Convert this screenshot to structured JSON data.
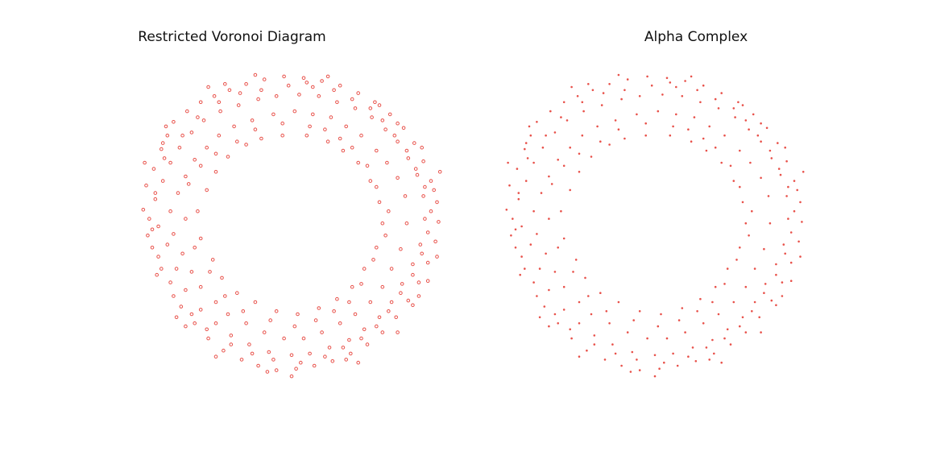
{
  "colors": {
    "point": "#e8514a",
    "background": "#ffffff",
    "title": "#111111"
  },
  "chart_data": [
    {
      "type": "scatter",
      "title": "Restricted Voronoi Diagram",
      "marker": "hollow-circle",
      "axes_visible": false,
      "grid": false,
      "xlim": [
        -1.05,
        1.05
      ],
      "ylim": [
        -1.05,
        1.05
      ],
      "description_of_points": "Sample points of an annulus (outer radius ~1.0, inner radius ~0.55) shown as small open circles; the inner hole is a star-like shape",
      "points": [
        [
          -0.98,
          0.11
        ],
        [
          -0.95,
          -0.06
        ],
        [
          -0.96,
          0.27
        ],
        [
          -0.91,
          0.38
        ],
        [
          -0.88,
          -0.2
        ],
        [
          -0.86,
          0.51
        ],
        [
          -0.82,
          0.6
        ],
        [
          -0.8,
          -0.37
        ],
        [
          -0.78,
          0.69
        ],
        [
          -0.73,
          -0.53
        ],
        [
          -0.69,
          0.76
        ],
        [
          -0.64,
          -0.64
        ],
        [
          -0.6,
          0.82
        ],
        [
          -0.55,
          -0.74
        ],
        [
          -0.51,
          0.86
        ],
        [
          -0.45,
          -0.82
        ],
        [
          -0.41,
          0.9
        ],
        [
          -0.33,
          -0.88
        ],
        [
          -0.3,
          0.94
        ],
        [
          -0.22,
          -0.92
        ],
        [
          -0.18,
          0.97
        ],
        [
          -0.1,
          -0.95
        ],
        [
          -0.05,
          0.99
        ],
        [
          0.03,
          -0.94
        ],
        [
          0.08,
          0.98
        ],
        [
          0.15,
          -0.92
        ],
        [
          0.2,
          0.96
        ],
        [
          0.27,
          -0.89
        ],
        [
          0.32,
          0.93
        ],
        [
          0.39,
          -0.84
        ],
        [
          0.44,
          0.88
        ],
        [
          0.5,
          -0.78
        ],
        [
          0.55,
          0.82
        ],
        [
          0.6,
          -0.7
        ],
        [
          0.65,
          0.74
        ],
        [
          0.69,
          -0.6
        ],
        [
          0.74,
          0.65
        ],
        [
          0.77,
          -0.49
        ],
        [
          0.81,
          0.55
        ],
        [
          0.84,
          -0.37
        ],
        [
          0.87,
          0.43
        ],
        [
          0.9,
          -0.24
        ],
        [
          0.92,
          0.3
        ],
        [
          0.95,
          -0.1
        ],
        [
          0.96,
          0.16
        ],
        [
          0.97,
          0.03
        ],
        [
          -0.9,
          0.18
        ],
        [
          -0.88,
          0.0
        ],
        [
          -0.85,
          0.3
        ],
        [
          -0.8,
          0.42
        ],
        [
          -0.82,
          -0.12
        ],
        [
          -0.76,
          -0.28
        ],
        [
          -0.74,
          0.52
        ],
        [
          -0.7,
          -0.42
        ],
        [
          -0.66,
          0.62
        ],
        [
          -0.6,
          -0.55
        ],
        [
          -0.58,
          0.7
        ],
        [
          -0.5,
          -0.64
        ],
        [
          -0.47,
          0.76
        ],
        [
          -0.4,
          -0.72
        ],
        [
          -0.35,
          0.8
        ],
        [
          -0.28,
          -0.78
        ],
        [
          -0.22,
          0.84
        ],
        [
          -0.15,
          -0.83
        ],
        [
          -0.1,
          0.86
        ],
        [
          0.0,
          -0.85
        ],
        [
          0.05,
          0.87
        ],
        [
          0.12,
          -0.84
        ],
        [
          0.18,
          0.86
        ],
        [
          0.25,
          -0.8
        ],
        [
          0.3,
          0.82
        ],
        [
          0.38,
          -0.75
        ],
        [
          0.42,
          0.78
        ],
        [
          0.48,
          -0.68
        ],
        [
          0.53,
          0.72
        ],
        [
          0.58,
          -0.6
        ],
        [
          0.62,
          0.64
        ],
        [
          0.66,
          -0.5
        ],
        [
          0.7,
          0.56
        ],
        [
          0.73,
          -0.38
        ],
        [
          0.77,
          0.45
        ],
        [
          0.8,
          -0.25
        ],
        [
          0.83,
          0.34
        ],
        [
          0.85,
          -0.12
        ],
        [
          0.87,
          0.2
        ],
        [
          0.88,
          0.05
        ],
        [
          -0.8,
          0.1
        ],
        [
          -0.78,
          -0.05
        ],
        [
          -0.75,
          0.22
        ],
        [
          -0.7,
          0.33
        ],
        [
          -0.72,
          -0.18
        ],
        [
          -0.66,
          -0.3
        ],
        [
          -0.64,
          0.44
        ],
        [
          -0.6,
          -0.4
        ],
        [
          -0.56,
          0.52
        ],
        [
          -0.5,
          -0.5
        ],
        [
          -0.48,
          0.6
        ],
        [
          -0.42,
          -0.58
        ],
        [
          -0.38,
          0.66
        ],
        [
          -0.3,
          -0.64
        ],
        [
          -0.26,
          0.7
        ],
        [
          -0.18,
          -0.7
        ],
        [
          -0.12,
          0.74
        ],
        [
          -0.05,
          -0.74
        ],
        [
          0.02,
          0.76
        ],
        [
          0.08,
          -0.74
        ],
        [
          0.14,
          0.74
        ],
        [
          0.2,
          -0.7
        ],
        [
          0.26,
          0.72
        ],
        [
          0.32,
          -0.64
        ],
        [
          0.36,
          0.66
        ],
        [
          0.42,
          -0.58
        ],
        [
          0.46,
          0.6
        ],
        [
          0.52,
          -0.5
        ],
        [
          0.56,
          0.5
        ],
        [
          0.6,
          -0.4
        ],
        [
          0.63,
          0.42
        ],
        [
          0.66,
          -0.28
        ],
        [
          0.7,
          0.32
        ],
        [
          0.72,
          -0.15
        ],
        [
          0.75,
          0.2
        ],
        [
          0.76,
          0.02
        ],
        [
          -0.92,
          -0.02
        ],
        [
          -0.9,
          0.22
        ],
        [
          -0.86,
          -0.28
        ],
        [
          -0.84,
          0.45
        ],
        [
          -0.78,
          -0.46
        ],
        [
          -0.72,
          0.6
        ],
        [
          -0.66,
          -0.58
        ],
        [
          -0.62,
          0.72
        ],
        [
          -0.56,
          -0.68
        ],
        [
          -0.48,
          0.82
        ],
        [
          -0.4,
          -0.78
        ],
        [
          -0.34,
          0.88
        ],
        [
          -0.26,
          -0.84
        ],
        [
          -0.2,
          0.9
        ],
        [
          -0.12,
          -0.88
        ],
        [
          -0.02,
          0.93
        ],
        [
          0.06,
          -0.9
        ],
        [
          0.14,
          0.92
        ],
        [
          0.22,
          -0.86
        ],
        [
          0.28,
          0.9
        ],
        [
          0.34,
          -0.8
        ],
        [
          0.4,
          0.84
        ],
        [
          0.46,
          -0.74
        ],
        [
          0.52,
          0.78
        ],
        [
          0.56,
          -0.66
        ],
        [
          0.6,
          0.7
        ],
        [
          0.64,
          -0.56
        ],
        [
          0.68,
          0.6
        ],
        [
          0.72,
          -0.44
        ],
        [
          0.76,
          0.5
        ],
        [
          0.8,
          -0.32
        ],
        [
          0.82,
          0.38
        ],
        [
          0.86,
          -0.18
        ],
        [
          0.88,
          0.26
        ],
        [
          0.9,
          -0.04
        ],
        [
          0.92,
          0.1
        ],
        [
          -0.62,
          0.1
        ],
        [
          -0.6,
          -0.08
        ],
        [
          -0.56,
          0.24
        ],
        [
          -0.5,
          0.36
        ],
        [
          -0.52,
          -0.22
        ],
        [
          -0.46,
          -0.34
        ],
        [
          -0.42,
          0.46
        ],
        [
          -0.36,
          -0.44
        ],
        [
          -0.3,
          0.54
        ],
        [
          -0.24,
          -0.5
        ],
        [
          -0.2,
          0.58
        ],
        [
          -0.1,
          -0.56
        ],
        [
          -0.06,
          0.6
        ],
        [
          0.04,
          -0.58
        ],
        [
          0.1,
          0.6
        ],
        [
          0.18,
          -0.54
        ],
        [
          0.24,
          0.56
        ],
        [
          0.3,
          -0.48
        ],
        [
          0.34,
          0.5
        ],
        [
          0.4,
          -0.4
        ],
        [
          0.44,
          0.42
        ],
        [
          0.48,
          -0.28
        ],
        [
          0.52,
          0.3
        ],
        [
          0.56,
          -0.14
        ],
        [
          0.58,
          0.16
        ],
        [
          0.6,
          0.02
        ],
        [
          -0.85,
          0.55
        ],
        [
          -0.94,
          0.05
        ],
        [
          -0.89,
          -0.32
        ],
        [
          -0.7,
          -0.66
        ],
        [
          -0.44,
          0.94
        ],
        [
          -0.16,
          -0.96
        ],
        [
          0.1,
          0.95
        ],
        [
          0.36,
          -0.88
        ],
        [
          0.58,
          0.8
        ],
        [
          0.8,
          -0.52
        ],
        [
          0.94,
          0.24
        ],
        [
          0.9,
          -0.36
        ],
        [
          -0.68,
          0.28
        ],
        [
          -0.7,
          0.05
        ],
        [
          -0.64,
          -0.14
        ],
        [
          -0.6,
          0.4
        ],
        [
          -0.54,
          -0.3
        ],
        [
          -0.5,
          0.48
        ],
        [
          -0.44,
          -0.46
        ],
        [
          -0.36,
          0.56
        ],
        [
          -0.32,
          -0.56
        ],
        [
          -0.24,
          0.64
        ],
        [
          -0.14,
          -0.62
        ],
        [
          -0.06,
          0.68
        ],
        [
          0.02,
          -0.66
        ],
        [
          0.12,
          0.66
        ],
        [
          0.16,
          -0.62
        ],
        [
          0.22,
          0.64
        ],
        [
          0.28,
          -0.56
        ],
        [
          0.32,
          0.58
        ],
        [
          0.38,
          -0.5
        ],
        [
          0.4,
          0.52
        ],
        [
          0.46,
          -0.38
        ],
        [
          0.5,
          0.4
        ],
        [
          0.54,
          -0.22
        ],
        [
          0.56,
          0.26
        ],
        [
          0.62,
          -0.06
        ],
        [
          0.64,
          0.1
        ],
        [
          -0.97,
          0.42
        ],
        [
          -0.92,
          -0.14
        ],
        [
          -0.83,
          0.66
        ],
        [
          -0.76,
          -0.6
        ],
        [
          -0.55,
          0.92
        ],
        [
          -0.5,
          -0.86
        ],
        [
          -0.24,
          1.0
        ],
        [
          0.0,
          -0.99
        ],
        [
          0.24,
          0.99
        ],
        [
          0.44,
          -0.9
        ],
        [
          0.7,
          0.68
        ],
        [
          0.7,
          -0.7
        ],
        [
          0.86,
          0.52
        ],
        [
          0.96,
          -0.2
        ],
        [
          0.98,
          0.36
        ],
        [
          0.84,
          -0.46
        ]
      ]
    },
    {
      "type": "scatter",
      "title": "Alpha Complex",
      "marker": "filled-dot",
      "axes_visible": false,
      "grid": false,
      "xlim": [
        -1.05,
        1.05
      ],
      "ylim": [
        -1.05,
        1.05
      ],
      "description_of_points": "Same annulus point set rendered as small filled dots",
      "points": "same as chart 1"
    }
  ],
  "panels": {
    "left": {
      "title": "Restricted Voronoi Diagram"
    },
    "right": {
      "title": "Alpha Complex"
    }
  }
}
